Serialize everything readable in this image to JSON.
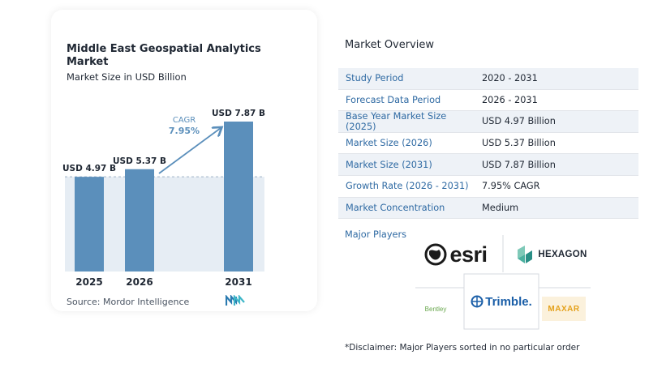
{
  "chart_data": {
    "type": "bar",
    "title": "Middle East Geospatial Analytics Market",
    "subtitle": "Market Size in USD Billion",
    "categories": [
      "2025",
      "2026",
      "2031"
    ],
    "values": [
      4.97,
      5.37,
      7.87
    ],
    "data_labels": [
      "USD 4.97 B",
      "USD 5.37 B",
      "USD 7.87 B"
    ],
    "cagr_label": "CAGR",
    "cagr_value": "7.95%",
    "ylim": [
      0,
      8.5
    ],
    "bar_color": "#5b8fbb",
    "shade_color": "#e6edf4"
  },
  "source": "Source:  Mordor Intelligence",
  "overview": {
    "title": "Market Overview",
    "rows": [
      {
        "label": "Study Period",
        "value": "2020 - 2031"
      },
      {
        "label": "Forecast Data Period",
        "value": "2026 - 2031"
      },
      {
        "label": "Base Year Market Size (2025)",
        "value": "USD 4.97 Billion"
      },
      {
        "label": "Market Size (2026)",
        "value": "USD 5.37 Billion"
      },
      {
        "label": "Market Size (2031)",
        "value": "USD 7.87 Billion"
      },
      {
        "label": "Growth Rate (2026 - 2031)",
        "value": "7.95% CAGR"
      },
      {
        "label": "Market Concentration",
        "value": "Medium"
      }
    ]
  },
  "major_players": {
    "label": "Major Players",
    "logos": [
      "esri",
      "HEXAGON",
      "Bentley",
      "Trimble.",
      "MAXAR"
    ]
  },
  "disclaimer": "*Disclaimer: Major Players sorted in no particular order"
}
